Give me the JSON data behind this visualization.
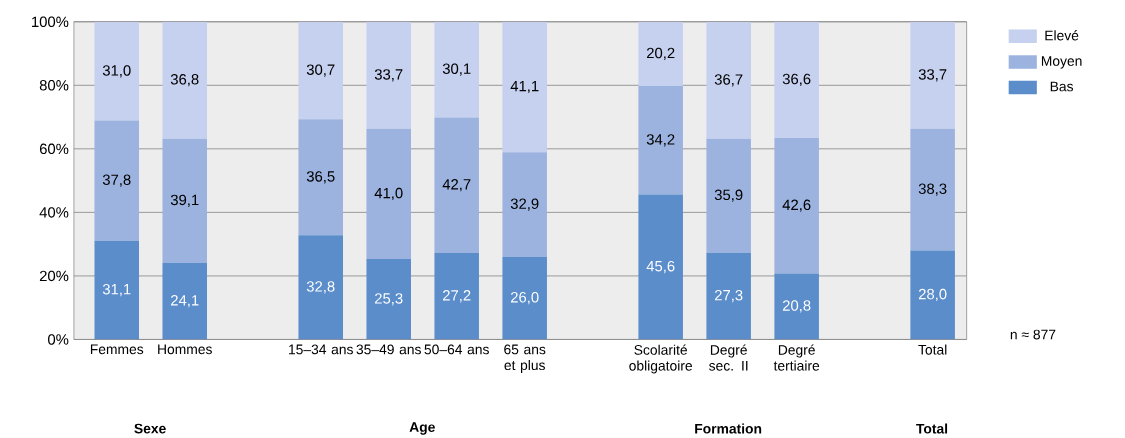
{
  "chart_data": {
    "type": "bar",
    "stacked": true,
    "categories": [
      "Femmes",
      "Hommes",
      null,
      "15–34 ans",
      "35–49 ans",
      "50–64 ans",
      "65 ans et plus",
      null,
      "Scolarité obligatoire",
      "Degré sec. II",
      "Degré tertiaire",
      null,
      "Total"
    ],
    "series": [
      {
        "name": "Bas",
        "color": "#5b8dcb",
        "values": [
          31.1,
          24.1,
          null,
          32.8,
          25.3,
          27.2,
          26.0,
          null,
          45.6,
          27.3,
          20.8,
          null,
          28.0
        ],
        "value_labels": [
          "31,1",
          "24,1",
          null,
          "32,8",
          "25,3",
          "27,2",
          "26,0",
          null,
          "45,6",
          "27,3",
          "20,8",
          null,
          "28,0"
        ]
      },
      {
        "name": "Moyen",
        "color": "#9cb3df",
        "values": [
          37.8,
          39.1,
          null,
          36.5,
          41.0,
          42.7,
          32.9,
          null,
          34.2,
          35.9,
          42.6,
          null,
          38.3
        ],
        "value_labels": [
          "37,8",
          "39,1",
          null,
          "36,5",
          "41,0",
          "42,7",
          "32,9",
          null,
          "34,2",
          "35,9",
          "42,6",
          null,
          "38,3"
        ]
      },
      {
        "name": "Elevé",
        "color": "#c6d0ef",
        "values": [
          31.0,
          36.8,
          null,
          30.7,
          33.7,
          30.1,
          41.1,
          null,
          20.2,
          36.7,
          36.6,
          null,
          33.7
        ],
        "value_labels": [
          "31,0",
          "36,8",
          null,
          "30,7",
          "33,7",
          "30,1",
          "41,1",
          null,
          "20,2",
          "36,7",
          "36,6",
          null,
          "33,7"
        ]
      }
    ],
    "ylim": [
      0,
      100
    ],
    "yticks": [
      {
        "value": 0,
        "label": "0%"
      },
      {
        "value": 20,
        "label": "20%"
      },
      {
        "value": 40,
        "label": "40%"
      },
      {
        "value": 60,
        "label": "60%"
      },
      {
        "value": 80,
        "label": "80%"
      },
      {
        "value": 100,
        "label": "100%"
      }
    ],
    "grid": "y",
    "legend": "top right",
    "annotations": [
      "Sexe",
      "Age",
      "Formation",
      "Total",
      "n ≈ 877"
    ]
  }
}
